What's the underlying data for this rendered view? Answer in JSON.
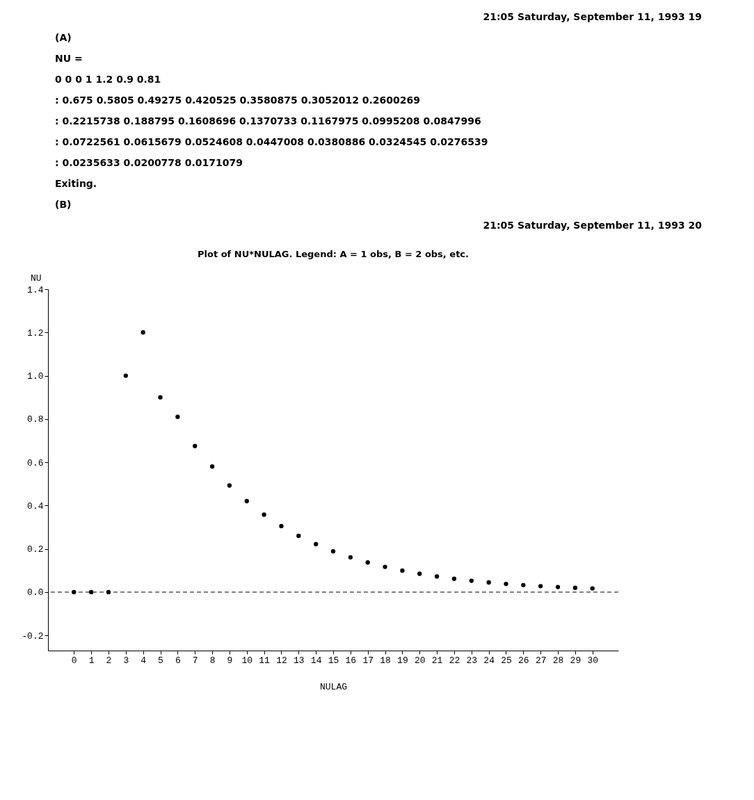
{
  "chart_data": {
    "type": "scatter",
    "title": "Plot of NU*NULAG. Legend: A = 1 obs, B = 2 obs, etc.",
    "xlabel": "NULAG",
    "ylabel": "NU",
    "annotations": [
      "21:05 Saturday, September 11, 1993 19",
      "(A)",
      "NU =",
      "0 0 0 1 1.2 0.9 0.81",
      ": 0.675 0.5805 0.49275 0.420525 0.3580875 0.3052012 0.2600269",
      ": 0.2215738 0.188795 0.1608696 0.1370733 0.1167975 0.0995208 0.0847996",
      ": 0.0722561 0.0615679 0.0524608 0.0447008 0.0380886 0.0324545 0.0276539",
      ": 0.0235633 0.0200778 0.0171079",
      "Exiting.",
      "(B)",
      "21:05 Saturday, September 11, 1993 20"
    ],
    "x": [
      0,
      1,
      2,
      3,
      4,
      5,
      6,
      7,
      8,
      9,
      10,
      11,
      12,
      13,
      14,
      15,
      16,
      17,
      18,
      19,
      20,
      21,
      22,
      23,
      24,
      25,
      26,
      27,
      28,
      29,
      30
    ],
    "series": [
      {
        "color": "#000000",
        "values": [
          0,
          0,
          0,
          1,
          1.2,
          0.9,
          0.81,
          0.675,
          0.5805,
          0.49275,
          0.420525,
          0.3580875,
          0.3052012,
          0.2600269,
          0.2215738,
          0.188795,
          0.1608696,
          0.1370733,
          0.1167975,
          0.0995208,
          0.0847996,
          0.0722561,
          0.0615679,
          0.0524608,
          0.0447008,
          0.0380886,
          0.0324545,
          0.0276539,
          0.0235633,
          0.0200778,
          0.0171079
        ]
      }
    ],
    "xlim": [
      -1.5,
      31.5
    ],
    "xticks": [
      0,
      1,
      2,
      3,
      4,
      5,
      6,
      7,
      8,
      9,
      10,
      11,
      12,
      13,
      14,
      15,
      16,
      17,
      18,
      19,
      20,
      21,
      22,
      23,
      24,
      25,
      26,
      27,
      28,
      29,
      30
    ],
    "ylim": [
      -0.27,
      1.4
    ],
    "yticks": [
      {
        "value": -0.2,
        "label": "-0.2"
      },
      {
        "value": 0,
        "label": "0.0"
      },
      0.2,
      0.4,
      0.6,
      0.8,
      {
        "value": 1,
        "label": "1.0"
      },
      1.2,
      1.4
    ],
    "ref_lines": [
      {
        "axis": "y",
        "value": 0,
        "color": "#000000",
        "line_style": "dashed"
      }
    ],
    "marker": "circle",
    "grid": false
  }
}
